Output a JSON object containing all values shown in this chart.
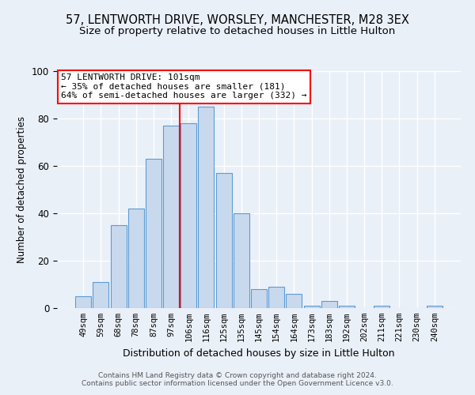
{
  "title": "57, LENTWORTH DRIVE, WORSLEY, MANCHESTER, M28 3EX",
  "subtitle": "Size of property relative to detached houses in Little Hulton",
  "xlabel": "Distribution of detached houses by size in Little Hulton",
  "ylabel": "Number of detached properties",
  "bar_labels": [
    "49sqm",
    "59sqm",
    "68sqm",
    "78sqm",
    "87sqm",
    "97sqm",
    "106sqm",
    "116sqm",
    "125sqm",
    "135sqm",
    "145sqm",
    "154sqm",
    "164sqm",
    "173sqm",
    "183sqm",
    "192sqm",
    "202sqm",
    "211sqm",
    "221sqm",
    "230sqm",
    "240sqm"
  ],
  "bar_values": [
    5,
    11,
    35,
    42,
    63,
    77,
    78,
    85,
    57,
    40,
    8,
    9,
    6,
    1,
    3,
    1,
    0,
    1,
    0,
    0,
    1
  ],
  "bar_color": "#c9d9ed",
  "bar_edge_color": "#5b9bd5",
  "background_color": "#eaf0f8",
  "grid_color": "#ffffff",
  "vline_x": 5.5,
  "vline_color": "red",
  "annotation_text": "57 LENTWORTH DRIVE: 101sqm\n← 35% of detached houses are smaller (181)\n64% of semi-detached houses are larger (332) →",
  "annotation_box_color": "white",
  "annotation_box_edge": "red",
  "footnote": "Contains HM Land Registry data © Crown copyright and database right 2024.\nContains public sector information licensed under the Open Government Licence v3.0.",
  "ylim": [
    0,
    100
  ],
  "title_fontsize": 10.5,
  "subtitle_fontsize": 9.5
}
